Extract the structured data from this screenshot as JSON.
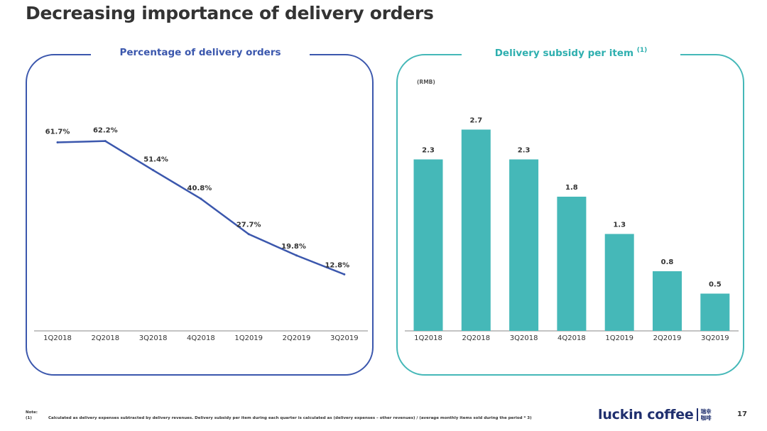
{
  "page": {
    "title": "Decreasing importance of delivery orders",
    "page_number": "17"
  },
  "left_panel": {
    "title": "Percentage of delivery orders",
    "color": "#3b57ad"
  },
  "right_panel": {
    "title": "Delivery subsidy per item",
    "title_superscript": "(1)",
    "color": "#45b8b8"
  },
  "chart_data": [
    {
      "type": "line",
      "title": "Percentage of delivery orders",
      "categories": [
        "1Q2018",
        "2Q2018",
        "3Q2018",
        "4Q2018",
        "1Q2019",
        "2Q2019",
        "3Q2019"
      ],
      "values": [
        61.7,
        62.2,
        51.4,
        40.8,
        27.7,
        19.8,
        12.8
      ],
      "value_labels": [
        "61.7%",
        "62.2%",
        "51.4%",
        "40.8%",
        "27.7%",
        "19.8%",
        "12.8%"
      ],
      "unit": "%",
      "ylim": [
        0,
        80
      ],
      "grid": false,
      "line_color": "#3b57ad"
    },
    {
      "type": "bar",
      "title": "Delivery subsidy per item",
      "ylabel": "(RMB)",
      "categories": [
        "1Q2018",
        "2Q2018",
        "3Q2018",
        "4Q2018",
        "1Q2019",
        "2Q2019",
        "3Q2019"
      ],
      "values": [
        2.3,
        2.7,
        2.3,
        1.8,
        1.3,
        0.8,
        0.5
      ],
      "value_labels": [
        "2.3",
        "2.7",
        "2.3",
        "1.8",
        "1.3",
        "0.8",
        "0.5"
      ],
      "ylim": [
        0,
        3.1
      ],
      "grid": false,
      "bar_color": "#45b8b8"
    }
  ],
  "footer": {
    "note_label": "Note:",
    "note_number": "(1)",
    "note_text": "Calculated as delivery expenses subtracted by delivery revenues. Delivery subsidy per item during each quarter  is calculated as (delivery expenses – other revenues) / (average monthly items sold during the period * 3)",
    "logo_text": "luckin coffee",
    "logo_cn_top": "瑞幸",
    "logo_cn_bottom": "咖啡"
  }
}
